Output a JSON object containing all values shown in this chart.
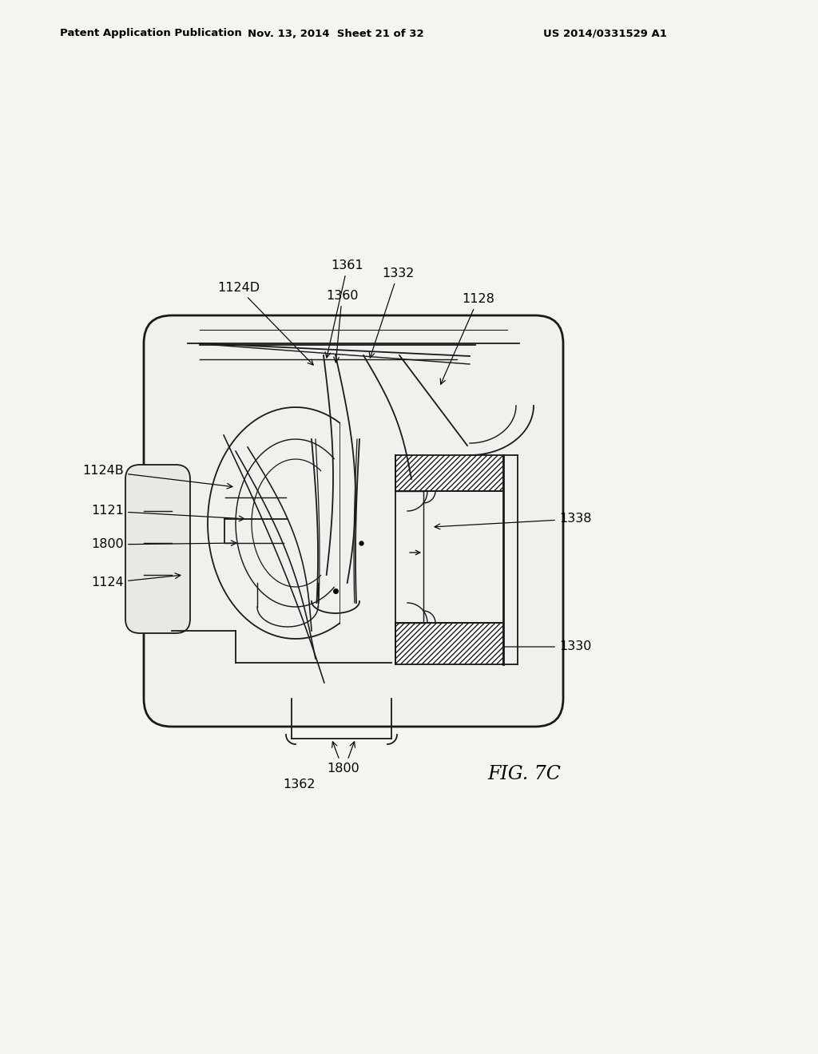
{
  "background_color": "#f5f5f0",
  "header_left": "Patent Application Publication",
  "header_center": "Nov. 13, 2014  Sheet 21 of 32",
  "header_right": "US 2014/0331529 A1",
  "figure_label": "FIG. 7C",
  "line_color": "#1a1a1a",
  "light_gray": "#cccccc",
  "mid_gray": "#999999"
}
